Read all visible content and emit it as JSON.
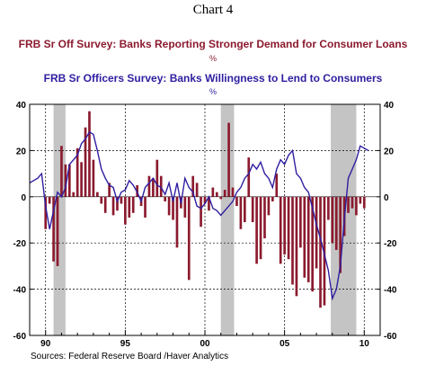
{
  "title": "Chart 4",
  "source": "Sources:  Federal Reserve Board /Haver Analytics",
  "colors": {
    "bars": "#8b1a2e",
    "line": "#2e1ea0",
    "recession": "#c4c4c4"
  },
  "chart_data": {
    "type": "bar",
    "series": [
      {
        "name": "FRB Sr Off Survey: Banks Reporting Stronger Demand for Consumer Loans",
        "unit": "%",
        "kind": "bar",
        "x": [
          1990.0,
          1990.25,
          1990.5,
          1990.75,
          1991.0,
          1991.25,
          1991.5,
          1991.75,
          1992.0,
          1992.25,
          1992.5,
          1992.75,
          1993.0,
          1993.25,
          1993.5,
          1993.75,
          1994.0,
          1994.25,
          1994.5,
          1994.75,
          1995.0,
          1995.25,
          1995.5,
          1995.75,
          1996.0,
          1996.25,
          1996.5,
          1996.75,
          1997.0,
          1997.25,
          1997.5,
          1997.75,
          1998.0,
          1998.25,
          1998.5,
          1998.75,
          1999.0,
          1999.25,
          1999.5,
          1999.75,
          2000.0,
          2000.25,
          2000.5,
          2000.75,
          2001.0,
          2001.25,
          2001.5,
          2001.75,
          2002.0,
          2002.25,
          2002.5,
          2002.75,
          2003.0,
          2003.25,
          2003.5,
          2003.75,
          2004.0,
          2004.25,
          2004.5,
          2004.75,
          2005.0,
          2005.25,
          2005.5,
          2005.75,
          2006.0,
          2006.25,
          2006.5,
          2006.75,
          2007.0,
          2007.25,
          2007.5,
          2007.75,
          2008.0,
          2008.25,
          2008.5,
          2008.75,
          2009.0,
          2009.25,
          2009.5,
          2009.75,
          2010.0
        ],
        "values": [
          -14,
          -3,
          -28,
          -30,
          22,
          14,
          14,
          2,
          21,
          15,
          30,
          37,
          16,
          2,
          -3,
          -7,
          6,
          -8,
          -6,
          -3,
          -12,
          -9,
          -7,
          5,
          -4,
          -9,
          9,
          8,
          16,
          9,
          -2,
          -8,
          -10,
          -22,
          -5,
          -9,
          -36,
          9,
          6,
          -13,
          -3,
          -6,
          4,
          2,
          -1,
          3,
          32,
          4,
          -4,
          -14,
          -11,
          17,
          -11,
          -29,
          -27,
          -18,
          -8,
          -2,
          10,
          -29,
          -25,
          -27,
          -38,
          -43,
          -22,
          -35,
          -37,
          -41,
          -31,
          -48,
          -47,
          -10,
          -20,
          -23,
          -33,
          -17,
          -7,
          -5,
          -8,
          -3,
          -5
        ]
      },
      {
        "name": "FRB Sr Officers Survey: Banks Willingness to Lend to Consumers",
        "unit": "%",
        "kind": "line",
        "x": [
          1989.0,
          1989.25,
          1989.5,
          1989.75,
          1990.0,
          1990.25,
          1990.5,
          1990.75,
          1991.0,
          1991.25,
          1991.5,
          1991.75,
          1992.0,
          1992.25,
          1992.5,
          1992.75,
          1993.0,
          1993.25,
          1993.5,
          1993.75,
          1994.0,
          1994.25,
          1994.5,
          1994.75,
          1995.0,
          1995.25,
          1995.5,
          1995.75,
          1996.0,
          1996.25,
          1996.5,
          1996.75,
          1997.0,
          1997.25,
          1997.5,
          1997.75,
          1998.0,
          1998.25,
          1998.5,
          1998.75,
          1999.0,
          1999.25,
          1999.5,
          1999.75,
          2000.0,
          2000.25,
          2000.5,
          2000.75,
          2001.0,
          2001.25,
          2001.5,
          2001.75,
          2002.0,
          2002.25,
          2002.5,
          2002.75,
          2003.0,
          2003.25,
          2003.5,
          2003.75,
          2004.0,
          2004.25,
          2004.5,
          2004.75,
          2005.0,
          2005.25,
          2005.5,
          2005.75,
          2006.0,
          2006.25,
          2006.5,
          2006.75,
          2007.0,
          2007.25,
          2007.5,
          2007.75,
          2008.0,
          2008.25,
          2008.5,
          2008.75,
          2009.0,
          2009.25,
          2009.5,
          2009.75,
          2010.0,
          2010.25
        ],
        "values": [
          6,
          7,
          8,
          10,
          -4,
          -14,
          -6,
          2,
          0,
          4,
          14,
          16,
          18,
          23,
          25,
          28,
          27,
          20,
          12,
          8,
          5,
          4,
          -2,
          2,
          3,
          7,
          5,
          2,
          -2,
          4,
          6,
          8,
          5,
          4,
          1,
          6,
          -2,
          6,
          -3,
          8,
          4,
          2,
          -4,
          -5,
          -3,
          0,
          -5,
          -6,
          -8,
          -6,
          -4,
          -2,
          2,
          4,
          8,
          10,
          14,
          12,
          15,
          10,
          8,
          4,
          12,
          16,
          14,
          18,
          20,
          10,
          8,
          4,
          2,
          -5,
          -12,
          -18,
          -25,
          -32,
          -44,
          -40,
          -30,
          -10,
          8,
          12,
          16,
          22,
          21,
          20
        ]
      }
    ],
    "xlim": [
      1989.0,
      2011.0
    ],
    "ylim": [
      -60,
      40
    ],
    "yticks": [
      -60,
      -40,
      -20,
      0,
      20,
      40
    ],
    "xtick_labels": [
      "90",
      "95",
      "00",
      "05",
      "10"
    ],
    "xtick_values": [
      1990,
      1995,
      2000,
      2005,
      2010
    ],
    "recession_bands": [
      [
        1990.5,
        1991.25
      ],
      [
        2001.0,
        2001.83
      ],
      [
        2007.9,
        2009.5
      ]
    ],
    "grid": "dashed vertical and horizontal",
    "legend": "above plot, series titles"
  }
}
